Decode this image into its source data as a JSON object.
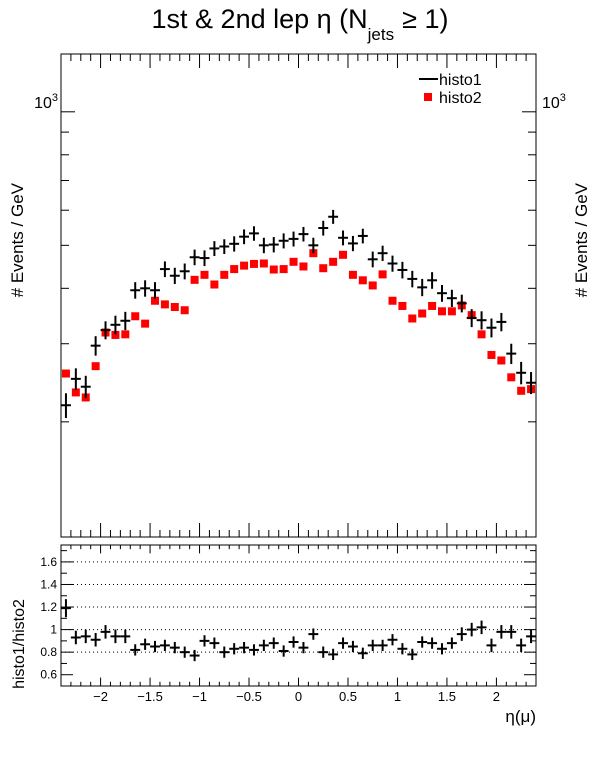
{
  "chart_data": {
    "type": "scatter",
    "title_main": "1st & 2nd lep η (N",
    "title_sub": "jets",
    "title_tail": "≥ 1)",
    "top": {
      "ylabel": "# Events / GeV",
      "ylabel_right": "# Events / GeV",
      "y_scale": "log",
      "ylim": [
        110,
        1350
      ],
      "tick_label_base": "10",
      "tick_label_exp": "3",
      "tick_value": 1000,
      "legend_position": "top-right",
      "series": [
        {
          "name": "histo1",
          "color": "#000000",
          "marker": "cross",
          "x": [
            -2.35,
            -2.25,
            -2.15,
            -2.05,
            -1.95,
            -1.85,
            -1.75,
            -1.65,
            -1.55,
            -1.45,
            -1.35,
            -1.25,
            -1.15,
            -1.05,
            -0.95,
            -0.85,
            -0.75,
            -0.65,
            -0.55,
            -0.45,
            -0.35,
            -0.25,
            -0.15,
            -0.05,
            0.05,
            0.15,
            0.25,
            0.35,
            0.45,
            0.55,
            0.65,
            0.75,
            0.85,
            0.95,
            1.05,
            1.15,
            1.25,
            1.35,
            1.45,
            1.55,
            1.65,
            1.75,
            1.85,
            1.95,
            2.05,
            2.15,
            2.25,
            2.35
          ],
          "y": [
            218,
            250,
            240,
            297,
            322,
            331,
            338,
            396,
            400,
            396,
            442,
            427,
            437,
            470,
            468,
            492,
            497,
            504,
            523,
            532,
            500,
            502,
            512,
            517,
            530,
            500,
            547,
            580,
            520,
            505,
            525,
            465,
            480,
            455,
            440,
            420,
            402,
            417,
            390,
            380,
            370,
            343,
            339,
            326,
            336,
            285,
            258,
            245
          ],
          "y_err": [
            14,
            14,
            14,
            15,
            15,
            16,
            16,
            17,
            17,
            17,
            18,
            18,
            18,
            19,
            19,
            19,
            19,
            20,
            20,
            20,
            20,
            20,
            20,
            20,
            20,
            20,
            21,
            21,
            20,
            20,
            20,
            19,
            19,
            19,
            19,
            18,
            18,
            18,
            17,
            17,
            17,
            16,
            16,
            16,
            16,
            15,
            15,
            14
          ]
        },
        {
          "name": "histo2",
          "color": "#ff0000",
          "marker": "square",
          "x": [
            -2.35,
            -2.25,
            -2.15,
            -2.05,
            -1.95,
            -1.85,
            -1.75,
            -1.65,
            -1.55,
            -1.45,
            -1.35,
            -1.25,
            -1.15,
            -1.05,
            -0.95,
            -0.85,
            -0.75,
            -0.65,
            -0.55,
            -0.45,
            -0.35,
            -0.25,
            -0.15,
            -0.05,
            0.05,
            0.15,
            0.25,
            0.35,
            0.45,
            0.55,
            0.65,
            0.75,
            0.85,
            0.95,
            1.05,
            1.15,
            1.25,
            1.35,
            1.45,
            1.55,
            1.65,
            1.75,
            1.85,
            1.95,
            2.05,
            2.15,
            2.25,
            2.35
          ],
          "y": [
            257,
            233,
            227,
            267,
            318,
            314,
            315,
            346,
            333,
            375,
            368,
            363,
            357,
            418,
            429,
            408,
            429,
            442,
            450,
            454,
            455,
            441,
            442,
            459,
            448,
            480,
            444,
            459,
            476,
            429,
            417,
            406,
            430,
            375,
            365,
            342,
            351,
            365,
            355,
            355,
            366,
            348,
            315,
            283,
            275,
            252,
            235,
            237
          ]
        }
      ]
    },
    "ratio": {
      "ylabel": "histo1/histo2",
      "ylim": [
        0.5,
        1.75
      ],
      "y_ticks": [
        0.6,
        0.8,
        1,
        1.2,
        1.4,
        1.6
      ],
      "y_tick_labels": [
        "0.6",
        "0.8",
        "1",
        "1.2",
        "1.4",
        "1.6"
      ],
      "grid_lines": [
        0.8,
        1,
        1.2,
        1.4,
        1.6
      ],
      "grid": "dotted",
      "series": {
        "x": [
          -2.35,
          -2.25,
          -2.15,
          -2.05,
          -1.95,
          -1.85,
          -1.75,
          -1.65,
          -1.55,
          -1.45,
          -1.35,
          -1.25,
          -1.15,
          -1.05,
          -0.95,
          -0.85,
          -0.75,
          -0.65,
          -0.55,
          -0.45,
          -0.35,
          -0.25,
          -0.15,
          -0.05,
          0.05,
          0.15,
          0.25,
          0.35,
          0.45,
          0.55,
          0.65,
          0.75,
          0.85,
          0.95,
          1.05,
          1.15,
          1.25,
          1.35,
          1.45,
          1.55,
          1.65,
          1.75,
          1.85,
          1.95,
          2.05,
          2.15,
          2.25,
          2.35
        ],
        "y": [
          1.19,
          0.93,
          0.94,
          0.91,
          0.98,
          0.94,
          0.94,
          0.82,
          0.87,
          0.85,
          0.86,
          0.84,
          0.8,
          0.77,
          0.9,
          0.88,
          0.8,
          0.83,
          0.84,
          0.82,
          0.86,
          0.88,
          0.81,
          0.89,
          0.84,
          0.96,
          0.8,
          0.78,
          0.88,
          0.85,
          0.79,
          0.86,
          0.86,
          0.91,
          0.83,
          0.78,
          0.89,
          0.88,
          0.83,
          0.88,
          0.96,
          1.0,
          1.02,
          0.86,
          0.98,
          0.98,
          0.86,
          0.94
        ],
        "y_err": [
          0.08,
          0.06,
          0.06,
          0.06,
          0.06,
          0.06,
          0.06,
          0.05,
          0.05,
          0.05,
          0.05,
          0.05,
          0.05,
          0.05,
          0.05,
          0.05,
          0.05,
          0.05,
          0.05,
          0.05,
          0.05,
          0.05,
          0.05,
          0.05,
          0.05,
          0.05,
          0.05,
          0.05,
          0.05,
          0.05,
          0.05,
          0.05,
          0.05,
          0.05,
          0.05,
          0.05,
          0.05,
          0.05,
          0.05,
          0.05,
          0.06,
          0.06,
          0.06,
          0.06,
          0.06,
          0.06,
          0.06,
          0.06
        ]
      }
    },
    "x_axis": {
      "xlabel": "η(μ)",
      "xlim": [
        -2.4,
        2.4
      ],
      "ticks": [
        -2,
        -1.5,
        -1,
        -0.5,
        0,
        0.5,
        1,
        1.5,
        2
      ],
      "tick_labels": [
        "−2",
        "−1.5",
        "−1",
        "−0.5",
        "0",
        "0.5",
        "1",
        "1.5",
        "2"
      ]
    }
  }
}
